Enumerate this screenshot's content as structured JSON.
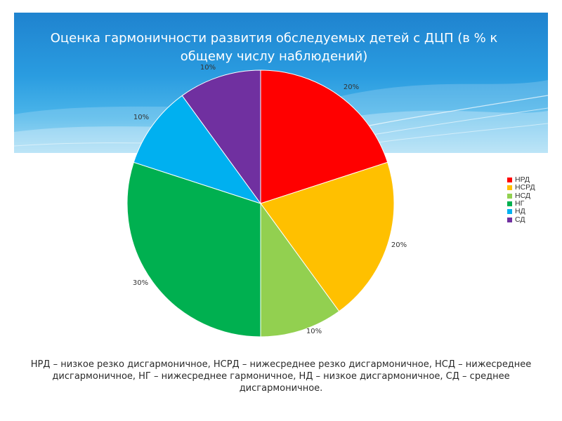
{
  "slide": {
    "title": "Оценка гармоничности развития обследуемых детей с ДЦП (в % к общему числу наблюдений)",
    "footnote": "НРД – низкое резко дисгармоничное, НСРД – нижесреднее резко дисгармоничное, НСД – нижесреднее дисгармоничное, НГ – нижесреднее гармоничное, НД – низкое дисгармоничное, СД – среднее дисгармоничное."
  },
  "chart_data": {
    "type": "pie",
    "title": "",
    "categories": [
      "НРД",
      "НСРД",
      "НСД",
      "НГ",
      "НД",
      "СД"
    ],
    "values": [
      20,
      20,
      10,
      30,
      10,
      10
    ],
    "labels": [
      "20%",
      "20%",
      "10%",
      "30%",
      "10%",
      "10%"
    ],
    "colors": [
      "#ff0000",
      "#ffc000",
      "#92d050",
      "#00b050",
      "#00b0f0",
      "#7030a0"
    ],
    "legend_position": "right",
    "start": "top, clockwise"
  }
}
